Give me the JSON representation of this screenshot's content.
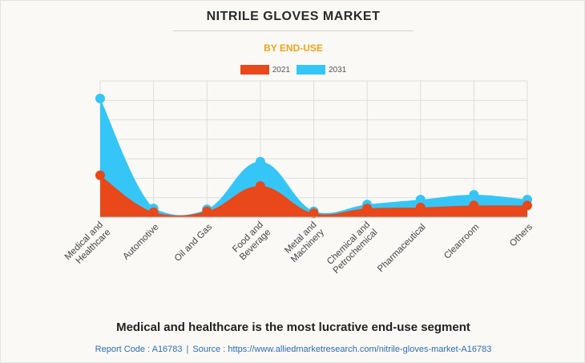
{
  "header": {
    "title": "NITRILE GLOVES MARKET",
    "subtitle": "BY END-USE"
  },
  "colors": {
    "series_2021": "#e8481a",
    "series_2031": "#35c6f7",
    "subtitle": "#f0a419",
    "grid": "#dddddd"
  },
  "chart_data": {
    "type": "area",
    "categories": [
      "Medical and Healthcare",
      "Automotive",
      "Oil and Gas",
      "Food and Beverage",
      "Metal and Machinery",
      "Chemical and Petrochemical",
      "Pharmaceutical",
      "Cleanroom",
      "Others"
    ],
    "tick_labels": [
      [
        "Medical and",
        "Healthcare"
      ],
      [
        "Automotive"
      ],
      [
        "Oil and Gas"
      ],
      [
        "Food and",
        "Beverage"
      ],
      [
        "Metal and",
        "Machinery"
      ],
      [
        "Chemical and",
        "Petrochemical"
      ],
      [
        "Pharmaceutical"
      ],
      [
        "Cleanroom"
      ],
      [
        "Others"
      ]
    ],
    "series": [
      {
        "name": "2021",
        "values": [
          2.15,
          0.25,
          0.3,
          1.6,
          0.2,
          0.45,
          0.5,
          0.6,
          0.6
        ]
      },
      {
        "name": "2031",
        "values": [
          6.1,
          0.45,
          0.4,
          2.85,
          0.3,
          0.65,
          0.9,
          1.15,
          0.9
        ]
      }
    ],
    "ylim": [
      0,
      7
    ],
    "y_gridlines": 7,
    "legend": "top-center",
    "xlabel": "",
    "ylabel": ""
  },
  "footer": {
    "caption": "Medical and healthcare is the most lucrative end-use segment",
    "report_code": "Report Code : A16783",
    "separator": "|",
    "source": "Source : https://www.alliedmarketresearch.com/nitrile-gloves-market-A16783"
  }
}
